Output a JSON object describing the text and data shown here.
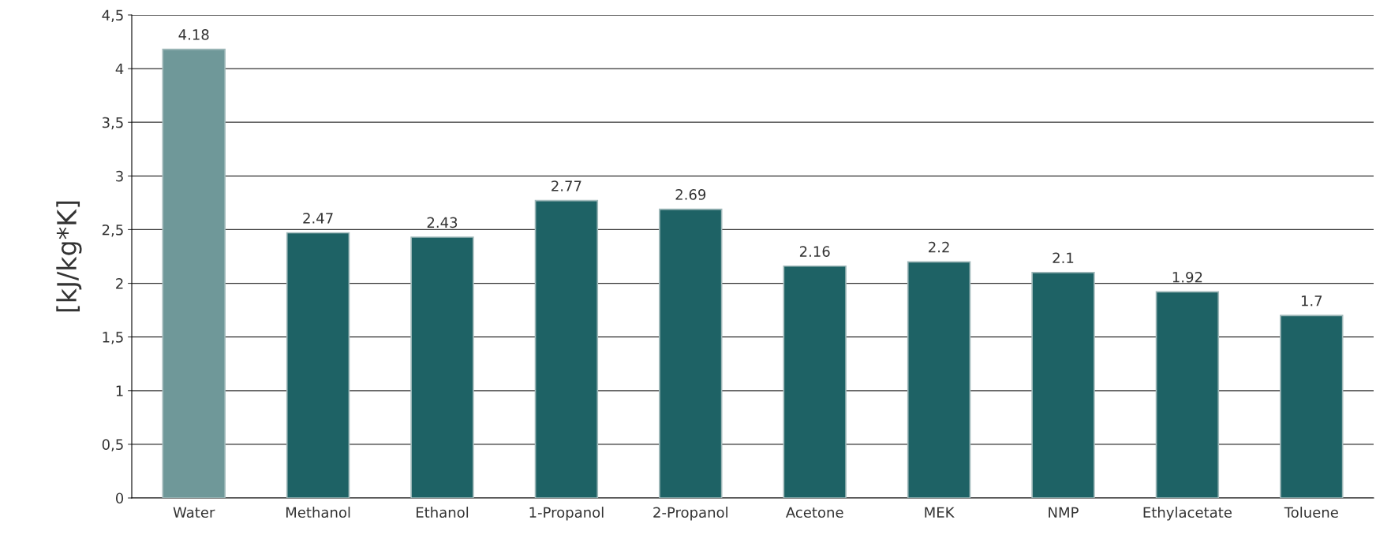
{
  "chart_data": {
    "type": "bar",
    "ylabel": "[kJ/kg*K]",
    "categories": [
      "Water",
      "Methanol",
      "Ethanol",
      "1-Propanol",
      "2-Propanol",
      "Acetone",
      "MEK",
      "NMP",
      "Ethylacetate",
      "Toluene"
    ],
    "values": [
      4.18,
      2.47,
      2.43,
      2.77,
      2.69,
      2.16,
      2.2,
      2.1,
      1.92,
      1.7
    ],
    "colors": [
      "#6f9899",
      "#1e6265",
      "#1e6265",
      "#1e6265",
      "#1e6265",
      "#1e6265",
      "#1e6265",
      "#1e6265",
      "#1e6265",
      "#1e6265"
    ],
    "ylim": [
      0,
      4.5
    ],
    "yticks": [
      0,
      {
        "value": 0.5,
        "label": "0,5"
      },
      1,
      {
        "value": 1.5,
        "label": "1,5"
      },
      2,
      {
        "value": 2.5,
        "label": "2,5"
      },
      3,
      {
        "value": 3.5,
        "label": "3,5"
      },
      4,
      {
        "value": 4.5,
        "label": "4,5"
      }
    ],
    "grid": "y",
    "data_labels": true
  }
}
